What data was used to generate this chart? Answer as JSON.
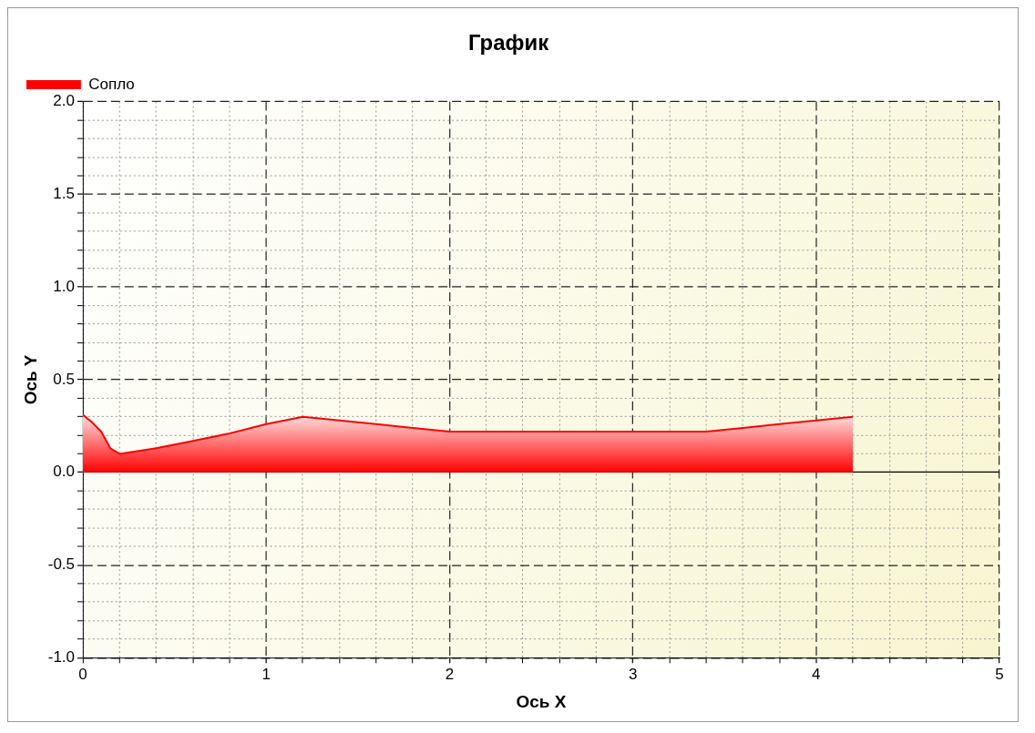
{
  "chart_data": {
    "type": "area",
    "title": "График",
    "xlabel": "Ось X",
    "ylabel": "Ось Y",
    "x": [
      0,
      0.05,
      0.1,
      0.15,
      0.2,
      0.4,
      0.6,
      0.8,
      1.0,
      1.2,
      1.4,
      1.6,
      1.8,
      2.0,
      3.4,
      3.6,
      3.8,
      4.0,
      4.2
    ],
    "series": [
      {
        "name": "Сопло",
        "color": "#ff0000",
        "values": [
          0.31,
          0.27,
          0.22,
          0.13,
          0.1,
          0.13,
          0.17,
          0.21,
          0.26,
          0.3,
          0.28,
          0.26,
          0.24,
          0.22,
          0.22,
          0.24,
          0.26,
          0.28,
          0.3
        ]
      }
    ],
    "xlim": [
      0,
      5
    ],
    "ylim": [
      -1,
      2
    ],
    "xticks": [
      0,
      {
        "value": 0.2,
        "label": null
      },
      {
        "value": 0.4,
        "label": null
      },
      {
        "value": 0.6,
        "label": null
      },
      {
        "value": 0.8,
        "label": null
      },
      1,
      {
        "value": 1.2,
        "label": null
      },
      {
        "value": 1.4,
        "label": null
      },
      {
        "value": 1.6,
        "label": null
      },
      {
        "value": 1.8,
        "label": null
      },
      2,
      {
        "value": 2.2,
        "label": null
      },
      {
        "value": 2.4,
        "label": null
      },
      {
        "value": 2.6,
        "label": null
      },
      {
        "value": 2.8,
        "label": null
      },
      3,
      {
        "value": 3.2,
        "label": null
      },
      {
        "value": 3.4,
        "label": null
      },
      {
        "value": 3.6,
        "label": null
      },
      {
        "value": 3.8,
        "label": null
      },
      4,
      {
        "value": 4.2,
        "label": null
      },
      {
        "value": 4.4,
        "label": null
      },
      {
        "value": 4.6,
        "label": null
      },
      {
        "value": 4.8,
        "label": null
      },
      5
    ],
    "yticks": [
      {
        "value": -1,
        "label": "-1.0"
      },
      {
        "value": -0.9,
        "label": null
      },
      {
        "value": -0.8,
        "label": null
      },
      {
        "value": -0.7,
        "label": null
      },
      {
        "value": -0.6,
        "label": null
      },
      {
        "value": -0.5,
        "label": "-0.5"
      },
      {
        "value": -0.4,
        "label": null
      },
      {
        "value": -0.3,
        "label": null
      },
      {
        "value": -0.2,
        "label": null
      },
      {
        "value": -0.1,
        "label": null
      },
      {
        "value": 0,
        "label": "0.0"
      },
      {
        "value": 0.1,
        "label": null
      },
      {
        "value": 0.2,
        "label": null
      },
      {
        "value": 0.3,
        "label": null
      },
      {
        "value": 0.4,
        "label": null
      },
      {
        "value": 0.5,
        "label": "0.5"
      },
      {
        "value": 0.6,
        "label": null
      },
      {
        "value": 0.7,
        "label": null
      },
      {
        "value": 0.8,
        "label": null
      },
      {
        "value": 0.9,
        "label": null
      },
      {
        "value": 1,
        "label": "1.0"
      },
      {
        "value": 1.1,
        "label": null
      },
      {
        "value": 1.2,
        "label": null
      },
      {
        "value": 1.3,
        "label": null
      },
      {
        "value": 1.4,
        "label": null
      },
      {
        "value": 1.5,
        "label": "1.5"
      },
      {
        "value": 1.6,
        "label": null
      },
      {
        "value": 1.7,
        "label": null
      },
      {
        "value": 1.8,
        "label": null
      },
      {
        "value": 1.9,
        "label": null
      },
      {
        "value": 2,
        "label": "2.0"
      }
    ],
    "grid": true,
    "legend": "top left"
  }
}
